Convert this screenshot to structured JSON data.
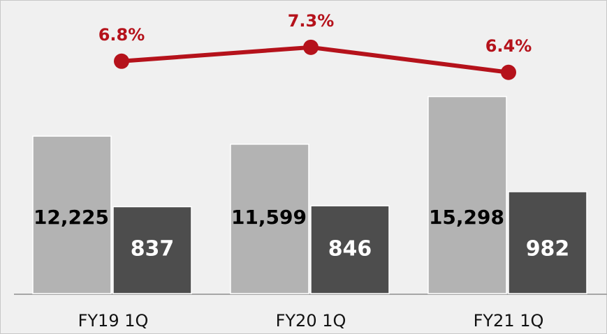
{
  "chart_data": {
    "type": "bar-line",
    "categories": [
      "FY19 1Q",
      "FY20 1Q",
      "FY21 1Q"
    ],
    "series": [
      {
        "type": "bar",
        "color": "#b3b3b3",
        "axis": "y",
        "values": [
          12225,
          11599,
          15298
        ],
        "value_labels": [
          "12,225",
          "11,599",
          "15,298"
        ]
      },
      {
        "type": "bar",
        "color": "#4d4d4d",
        "axis": "y2",
        "values": [
          837,
          846,
          982
        ],
        "value_labels": [
          "837",
          "846",
          "982"
        ]
      },
      {
        "type": "line",
        "color": "#b5121b",
        "axis": "y3",
        "values": [
          6.8,
          7.3,
          6.4
        ],
        "value_labels": [
          "6.8%",
          "7.3%",
          "6.4%"
        ]
      }
    ],
    "ylim": [
      0,
      22800
    ],
    "y2lim": [
      0,
      2830
    ],
    "y3lim": [
      -1.55,
      9
    ]
  }
}
